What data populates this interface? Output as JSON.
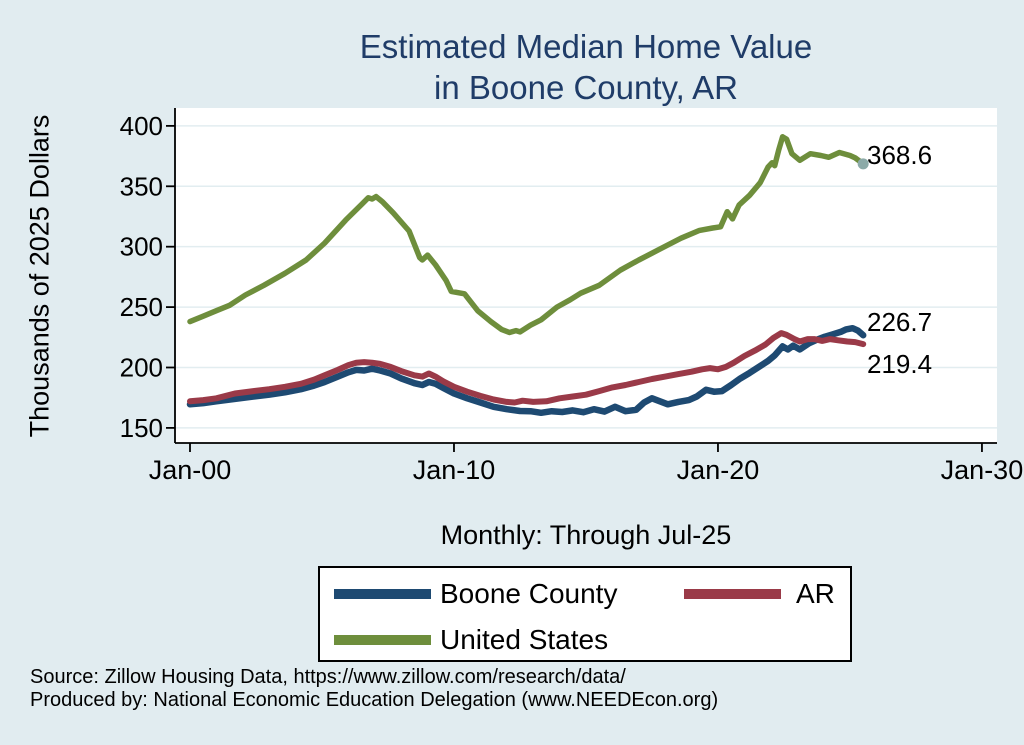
{
  "page": {
    "background": "#e1ecf0",
    "plot_background": "#ffffff",
    "grid_color": "#e2edf0",
    "axis_color": "#000000"
  },
  "title": {
    "line1": "Estimated Median Home Value",
    "line2": "in Boone County, AR",
    "color": "#1f3c68"
  },
  "axes": {
    "y_label": "Thousands of 2025 Dollars",
    "x_label": "Monthly: Through Jul-25",
    "y_ticks": [
      400,
      350,
      300,
      250,
      200,
      150
    ],
    "x_ticks": [
      {
        "t": 0,
        "label": "Jan-00"
      },
      {
        "t": 10,
        "label": "Jan-10"
      },
      {
        "t": 20,
        "label": "Jan-20"
      },
      {
        "t": 30,
        "label": "Jan-30"
      }
    ]
  },
  "chart_data": {
    "type": "line",
    "title": "Estimated Median Home Value in Boone County, AR",
    "xlabel": "Monthly: Through Jul-25",
    "ylabel": "Thousands of 2025 Dollars",
    "x_encoding": "years since Jan-2000",
    "x_range_shown": [
      "Jan-00",
      "Jan-30"
    ],
    "y_range_shown": [
      150,
      400
    ],
    "grid": "horizontal-only",
    "legend_position": "bottom-box",
    "series": [
      {
        "name": "Boone County",
        "color": "#1e4a72",
        "end_label": "226.7",
        "points": [
          [
            0,
            169.5
          ],
          [
            0.5,
            170.5
          ],
          [
            1,
            172
          ],
          [
            1.7,
            174
          ],
          [
            2.4,
            176
          ],
          [
            3,
            177.5
          ],
          [
            3.6,
            179.5
          ],
          [
            4.2,
            182
          ],
          [
            4.7,
            185
          ],
          [
            5.1,
            188
          ],
          [
            5.6,
            192.5
          ],
          [
            6,
            196
          ],
          [
            6.3,
            198
          ],
          [
            6.6,
            197.5
          ],
          [
            6.9,
            199
          ],
          [
            7.2,
            197.5
          ],
          [
            7.6,
            195
          ],
          [
            8,
            191
          ],
          [
            8.5,
            187
          ],
          [
            8.8,
            185.5
          ],
          [
            9.05,
            188
          ],
          [
            9.3,
            186.5
          ],
          [
            9.6,
            183
          ],
          [
            10,
            178.5
          ],
          [
            10.5,
            174.5
          ],
          [
            11,
            171
          ],
          [
            11.5,
            167.5
          ],
          [
            12,
            165.5
          ],
          [
            12.5,
            164
          ],
          [
            12.9,
            163.8
          ],
          [
            13.3,
            162.5
          ],
          [
            13.7,
            163.8
          ],
          [
            14.1,
            163.2
          ],
          [
            14.5,
            164.5
          ],
          [
            14.9,
            163
          ],
          [
            15.3,
            165.5
          ],
          [
            15.7,
            163.5
          ],
          [
            16.1,
            167.5
          ],
          [
            16.5,
            163.8
          ],
          [
            16.9,
            165
          ],
          [
            17.2,
            171
          ],
          [
            17.5,
            174.5
          ],
          [
            17.8,
            172
          ],
          [
            18.1,
            169.5
          ],
          [
            18.5,
            171.5
          ],
          [
            18.9,
            173
          ],
          [
            19.2,
            176
          ],
          [
            19.55,
            181.5
          ],
          [
            19.85,
            180
          ],
          [
            20.15,
            180.5
          ],
          [
            20.5,
            185.5
          ],
          [
            20.85,
            191
          ],
          [
            21.2,
            195.5
          ],
          [
            21.55,
            200.5
          ],
          [
            21.9,
            205.5
          ],
          [
            22.15,
            210
          ],
          [
            22.45,
            217.5
          ],
          [
            22.65,
            215
          ],
          [
            22.85,
            218
          ],
          [
            23.1,
            215
          ],
          [
            23.45,
            220
          ],
          [
            23.75,
            223
          ],
          [
            24.05,
            225.5
          ],
          [
            24.35,
            227.5
          ],
          [
            24.65,
            229.5
          ],
          [
            24.85,
            231.5
          ],
          [
            25.1,
            232.5
          ],
          [
            25.3,
            230.5
          ],
          [
            25.5,
            226.7
          ]
        ]
      },
      {
        "name": "AR",
        "color": "#9a3a48",
        "end_label": "219.4",
        "points": [
          [
            0,
            172
          ],
          [
            0.5,
            173
          ],
          [
            1,
            174.5
          ],
          [
            1.7,
            178.5
          ],
          [
            2.4,
            180.5
          ],
          [
            3,
            182
          ],
          [
            3.6,
            184
          ],
          [
            4.2,
            186.5
          ],
          [
            4.7,
            190
          ],
          [
            5.1,
            193.5
          ],
          [
            5.6,
            198
          ],
          [
            6,
            202
          ],
          [
            6.3,
            204
          ],
          [
            6.6,
            204.5
          ],
          [
            6.9,
            204
          ],
          [
            7.2,
            203
          ],
          [
            7.6,
            200.5
          ],
          [
            8,
            197
          ],
          [
            8.5,
            193.5
          ],
          [
            8.8,
            192.5
          ],
          [
            9.05,
            195
          ],
          [
            9.3,
            192.5
          ],
          [
            9.6,
            188.5
          ],
          [
            10,
            184
          ],
          [
            10.5,
            180
          ],
          [
            11,
            176.5
          ],
          [
            11.5,
            173.5
          ],
          [
            12,
            171.5
          ],
          [
            12.3,
            171
          ],
          [
            12.6,
            172.5
          ],
          [
            13,
            171.5
          ],
          [
            13.5,
            172
          ],
          [
            14,
            174.5
          ],
          [
            14.5,
            176
          ],
          [
            15,
            177.5
          ],
          [
            15.5,
            180.5
          ],
          [
            16,
            183.5
          ],
          [
            16.5,
            185.5
          ],
          [
            17,
            188
          ],
          [
            17.5,
            190.5
          ],
          [
            18,
            192.5
          ],
          [
            18.5,
            194.5
          ],
          [
            19,
            196.5
          ],
          [
            19.4,
            198.5
          ],
          [
            19.7,
            199.5
          ],
          [
            20,
            198.5
          ],
          [
            20.3,
            200.5
          ],
          [
            20.6,
            204
          ],
          [
            21,
            209.5
          ],
          [
            21.4,
            214
          ],
          [
            21.8,
            219
          ],
          [
            22.1,
            224.5
          ],
          [
            22.4,
            228.5
          ],
          [
            22.6,
            227
          ],
          [
            22.9,
            223.5
          ],
          [
            23.1,
            221.5
          ],
          [
            23.4,
            223.5
          ],
          [
            23.65,
            223.5
          ],
          [
            23.95,
            222
          ],
          [
            24.25,
            223.5
          ],
          [
            24.55,
            222.5
          ],
          [
            24.9,
            221.5
          ],
          [
            25.2,
            221
          ],
          [
            25.5,
            219.4
          ]
        ]
      },
      {
        "name": "United States",
        "color": "#6e8e3c",
        "end_label": "368.6",
        "end_marker_color": "#8caaa8",
        "points": [
          [
            0,
            238
          ],
          [
            0.5,
            242.5
          ],
          [
            1,
            247
          ],
          [
            1.5,
            251.5
          ],
          [
            2.1,
            260
          ],
          [
            2.8,
            268
          ],
          [
            3.6,
            278
          ],
          [
            4.4,
            289
          ],
          [
            5.1,
            303
          ],
          [
            5.9,
            322
          ],
          [
            6.5,
            335
          ],
          [
            6.75,
            340.5
          ],
          [
            6.9,
            339.5
          ],
          [
            7.05,
            341.5
          ],
          [
            7.3,
            337
          ],
          [
            7.7,
            328
          ],
          [
            8.3,
            313
          ],
          [
            8.7,
            291
          ],
          [
            8.8,
            289
          ],
          [
            9,
            293
          ],
          [
            9.3,
            285
          ],
          [
            9.7,
            272
          ],
          [
            9.9,
            263
          ],
          [
            10.4,
            261
          ],
          [
            10.9,
            247
          ],
          [
            11.4,
            238
          ],
          [
            11.8,
            231.5
          ],
          [
            12.1,
            229
          ],
          [
            12.35,
            230.5
          ],
          [
            12.5,
            229.5
          ],
          [
            12.9,
            235
          ],
          [
            13.3,
            239.5
          ],
          [
            13.9,
            250
          ],
          [
            14.4,
            256
          ],
          [
            14.8,
            261.5
          ],
          [
            15.5,
            268
          ],
          [
            16.3,
            280.5
          ],
          [
            17,
            289
          ],
          [
            17.8,
            298
          ],
          [
            18.6,
            307
          ],
          [
            19.3,
            313.5
          ],
          [
            19.8,
            315.5
          ],
          [
            20.1,
            316.5
          ],
          [
            20.35,
            329
          ],
          [
            20.55,
            323
          ],
          [
            20.8,
            334.5
          ],
          [
            21.2,
            342.5
          ],
          [
            21.6,
            353
          ],
          [
            21.9,
            366
          ],
          [
            22.05,
            369.5
          ],
          [
            22.15,
            367
          ],
          [
            22.3,
            380
          ],
          [
            22.45,
            391
          ],
          [
            22.6,
            389
          ],
          [
            22.8,
            377
          ],
          [
            23.1,
            371.5
          ],
          [
            23.5,
            377
          ],
          [
            23.9,
            375.5
          ],
          [
            24.2,
            374
          ],
          [
            24.6,
            378
          ],
          [
            25,
            375.5
          ],
          [
            25.2,
            373.5
          ],
          [
            25.5,
            368.6
          ]
        ]
      }
    ]
  },
  "legend": {
    "items": [
      {
        "label": "Boone County"
      },
      {
        "label": "AR"
      },
      {
        "label": "United States"
      }
    ]
  },
  "footer": {
    "line1": "Source: Zillow Housing Data, https://www.zillow.com/research/data/",
    "line2": "Produced by: National Economic Education Delegation (www.NEEDEcon.org)"
  }
}
